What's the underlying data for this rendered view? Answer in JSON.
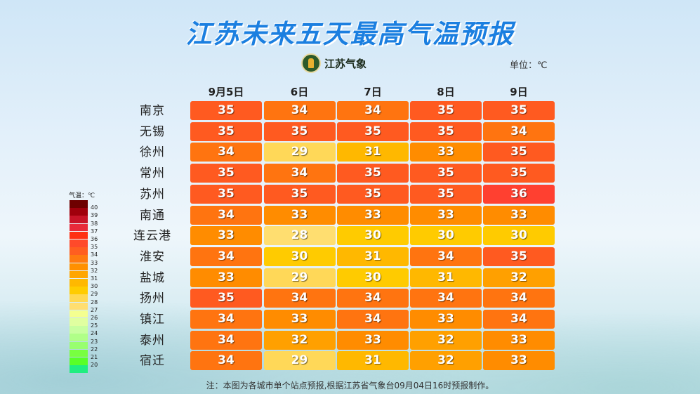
{
  "title": "江苏未来五天最高气温预报",
  "logo_text": "江苏气象",
  "unit": "单位：℃",
  "note": "注：本图为各城市单个站点预报,根据江苏省气象台09月04日16时预报制作。",
  "chart_data": {
    "type": "heatmap",
    "title": "江苏未来五天最高气温预报",
    "columns": [
      "9月5日",
      "6日",
      "7日",
      "8日",
      "9日"
    ],
    "rows": [
      "南京",
      "无锡",
      "徐州",
      "常州",
      "苏州",
      "南通",
      "连云港",
      "淮安",
      "盐城",
      "扬州",
      "镇江",
      "泰州",
      "宿迁"
    ],
    "values": [
      [
        35,
        34,
        34,
        35,
        35
      ],
      [
        35,
        35,
        35,
        35,
        34
      ],
      [
        34,
        29,
        31,
        33,
        35
      ],
      [
        35,
        34,
        35,
        35,
        35
      ],
      [
        35,
        35,
        35,
        35,
        36
      ],
      [
        34,
        33,
        33,
        33,
        33
      ],
      [
        33,
        28,
        30,
        30,
        30
      ],
      [
        34,
        30,
        31,
        34,
        35
      ],
      [
        33,
        29,
        30,
        31,
        32
      ],
      [
        35,
        34,
        34,
        34,
        34
      ],
      [
        34,
        33,
        34,
        33,
        34
      ],
      [
        34,
        32,
        33,
        32,
        33
      ],
      [
        34,
        29,
        31,
        32,
        33
      ]
    ],
    "cell_colors": {
      "28": "#ffde70",
      "29": "#ffd858",
      "30": "#ffcb00",
      "31": "#ffb800",
      "32": "#ffa000",
      "33": "#ff8c00",
      "34": "#ff7410",
      "35": "#ff5a20",
      "36": "#ff4030"
    },
    "legend": {
      "title": "气温：℃",
      "labels": [
        "40",
        "39",
        "38",
        "37",
        "36",
        "35",
        "34",
        "33",
        "32",
        "31",
        "30",
        "29",
        "28",
        "27",
        "26",
        "25",
        "24",
        "23",
        "22",
        "21",
        "20"
      ],
      "colors": [
        "#6e0000",
        "#a0000c",
        "#c81428",
        "#e82a3a",
        "#ff3012",
        "#ff4a2a",
        "#ff5e20",
        "#ff7a10",
        "#ff9000",
        "#ffa600",
        "#ffb800",
        "#ffcc00",
        "#ffd850",
        "#ffde70",
        "#f4ff90",
        "#e0ffa0",
        "#c8ffa0",
        "#b0ff88",
        "#98ff70",
        "#78ff40",
        "#58ff28",
        "#20ee80"
      ]
    }
  }
}
